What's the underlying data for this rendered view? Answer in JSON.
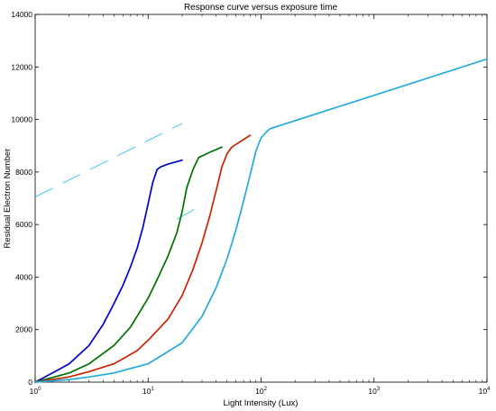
{
  "chart_data": {
    "type": "line",
    "title": "Response curve versus exposure time",
    "xlabel": "Light Intensity (Lux)",
    "ylabel": "Residual Electron Number",
    "xscale": "log",
    "xlim": [
      1,
      10000
    ],
    "ylim": [
      0,
      14000
    ],
    "grid": false,
    "x_ticks": [
      {
        "value": 1,
        "base": "10",
        "exp": "0"
      },
      {
        "value": 10,
        "base": "10",
        "exp": "1"
      },
      {
        "value": 100,
        "base": "10",
        "exp": "2"
      },
      {
        "value": 1000,
        "base": "10",
        "exp": "3"
      },
      {
        "value": 10000,
        "base": "10",
        "exp": "4"
      }
    ],
    "y_ticks": [
      {
        "value": 0,
        "label": "0"
      },
      {
        "value": 2000,
        "label": "2000"
      },
      {
        "value": 4000,
        "label": "4000"
      },
      {
        "value": 6000,
        "label": "6000"
      },
      {
        "value": 8000,
        "label": "8000"
      },
      {
        "value": 10000,
        "label": "10000"
      },
      {
        "value": 12000,
        "label": "12000"
      },
      {
        "value": 14000,
        "label": "14000"
      }
    ],
    "series": [
      {
        "color": "#0000cc",
        "x": [
          1,
          1.5,
          2,
          3,
          4,
          5,
          6,
          7,
          8,
          9,
          10,
          11,
          12,
          13,
          15,
          20
        ],
        "y": [
          0,
          400,
          700,
          1400,
          2200,
          3000,
          3700,
          4400,
          5100,
          5900,
          6800,
          7600,
          8100,
          8200,
          8300,
          8450
        ]
      },
      {
        "color": "#007000",
        "x": [
          1,
          2,
          3,
          5,
          7,
          10,
          12,
          15,
          18,
          20,
          22,
          25,
          28,
          35,
          45
        ],
        "y": [
          0,
          350,
          700,
          1400,
          2100,
          3200,
          3900,
          4800,
          5700,
          6500,
          7400,
          8100,
          8550,
          8750,
          8950
        ]
      },
      {
        "color": "#cc2200",
        "x": [
          1,
          2,
          3,
          5,
          8,
          10,
          15,
          20,
          25,
          30,
          35,
          40,
          45,
          50,
          55,
          65,
          80
        ],
        "y": [
          0,
          200,
          400,
          700,
          1200,
          1600,
          2400,
          3300,
          4300,
          5300,
          6300,
          7300,
          8200,
          8700,
          8950,
          9150,
          9400
        ]
      },
      {
        "color": "#22aadd",
        "x": [
          1,
          2,
          3,
          5,
          10,
          20,
          30,
          40,
          50,
          60,
          70,
          80,
          90,
          100,
          110,
          120
        ],
        "y": [
          0,
          100,
          200,
          350,
          700,
          1500,
          2500,
          3600,
          4700,
          5800,
          6900,
          7900,
          8800,
          9300,
          9500,
          9650
        ]
      },
      {
        "color": "#22aadd",
        "x": [
          120,
          10000
        ],
        "y": [
          9650,
          12300
        ]
      }
    ],
    "dashed_series": [
      {
        "color": "#44ccee",
        "x": [
          1,
          20
        ],
        "y": [
          7050,
          9850
        ]
      },
      {
        "color": "#44ccee",
        "x": [
          18,
          30
        ],
        "y": [
          6200,
          6750
        ]
      }
    ]
  }
}
